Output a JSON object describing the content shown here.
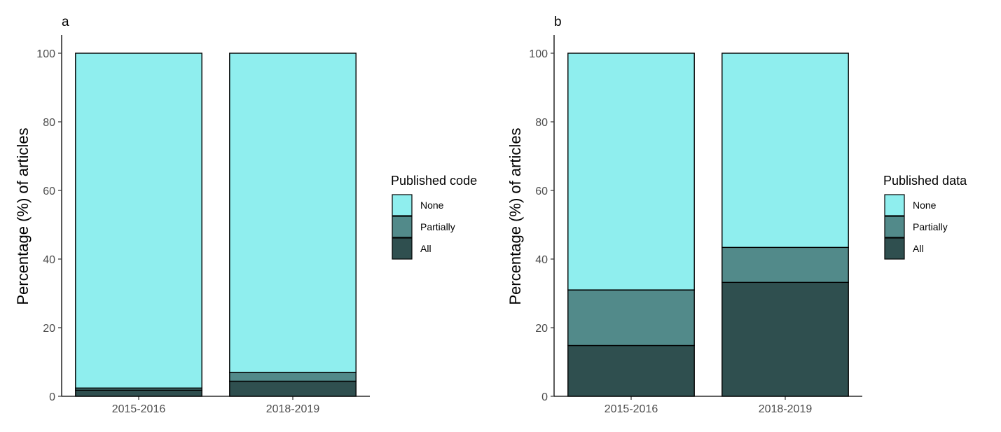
{
  "chart_data": [
    {
      "type": "bar",
      "stacked": true,
      "panel_label": "a",
      "ylabel": "Percentage (%) of articles",
      "xlabel": "",
      "ylim": [
        0,
        100
      ],
      "yticks": [
        0,
        20,
        40,
        60,
        80,
        100
      ],
      "grid": false,
      "legend_position": "right",
      "legend_title": "Published code",
      "categories": [
        "2015-2016",
        "2018-2019"
      ],
      "series": [
        {
          "name": "None",
          "color": "#8FEEEE",
          "values": [
            97.6,
            93.0
          ]
        },
        {
          "name": "Partially",
          "color": "#528A8A",
          "values": [
            0.6,
            2.6
          ]
        },
        {
          "name": "All",
          "color": "#2F4F4F",
          "values": [
            1.8,
            4.4
          ]
        }
      ]
    },
    {
      "type": "bar",
      "stacked": true,
      "panel_label": "b",
      "ylabel": "Percentage (%) of articles",
      "xlabel": "",
      "ylim": [
        0,
        100
      ],
      "yticks": [
        0,
        20,
        40,
        60,
        80,
        100
      ],
      "grid": false,
      "legend_position": "right",
      "legend_title": "Published data",
      "categories": [
        "2015-2016",
        "2018-2019"
      ],
      "series": [
        {
          "name": "None",
          "color": "#8FEEEE",
          "values": [
            69.0,
            56.6
          ]
        },
        {
          "name": "Partially",
          "color": "#528A8A",
          "values": [
            16.2,
            10.2
          ]
        },
        {
          "name": "All",
          "color": "#2F4F4F",
          "values": [
            14.8,
            33.2
          ]
        }
      ]
    }
  ]
}
